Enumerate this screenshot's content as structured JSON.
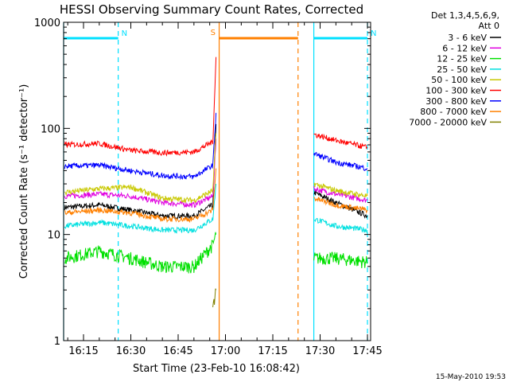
{
  "chart_data": {
    "type": "line",
    "title": "HESSI Observing Summary Count Rates, Corrected",
    "xlabel": "Start Time (23-Feb-10 16:08:42)",
    "ylabel": "Corrected Count Rate (s⁻¹ detector⁻¹)",
    "y_scale": "log",
    "ylim": [
      1,
      1000
    ],
    "xlim": [
      "16:08:42",
      "17:46:00"
    ],
    "ytick_labels": [
      "1",
      "10",
      "100",
      "1000"
    ],
    "xtick_labels": [
      "16:15",
      "16:30",
      "16:45",
      "17:00",
      "17:15",
      "17:30",
      "17:45"
    ],
    "legend_position": "right",
    "legend_header": [
      "Det 1,3,4,5,6,9,",
      "Att 0"
    ],
    "timestamp": "15-May-2010 19:53",
    "annotations": [
      {
        "label": "N",
        "type": "night-marker",
        "color": "#00e0ff",
        "start": "16:08:42",
        "end": "16:26:00"
      },
      {
        "label": "N",
        "type": "night-marker",
        "color": "#00e0ff",
        "start": "17:28:00",
        "end": "17:45:00"
      },
      {
        "label": "S",
        "type": "saa-marker",
        "color": "#ff8000",
        "start": "16:58:00",
        "end": "17:23:00"
      }
    ],
    "series": [
      {
        "name": "3 - 6 keV",
        "color": "#000000",
        "x": [
          "16:09",
          "16:20",
          "16:30",
          "16:40",
          "16:50",
          "16:56",
          "16:57",
          "17:28",
          "17:35",
          "17:45"
        ],
        "values": [
          18,
          19,
          17,
          15,
          15,
          19,
          110,
          25,
          20,
          15
        ]
      },
      {
        "name": "6 - 12 keV",
        "color": "#e000e0",
        "x": [
          "16:09",
          "16:20",
          "16:30",
          "16:40",
          "16:50",
          "16:56",
          "16:57",
          "17:28",
          "17:35",
          "17:45"
        ],
        "values": [
          23,
          24,
          23,
          20,
          19,
          23,
          80,
          27,
          24,
          21
        ]
      },
      {
        "name": "12 - 25 keV",
        "color": "#00e000",
        "x": [
          "16:09",
          "16:20",
          "16:30",
          "16:40",
          "16:50",
          "16:56",
          "16:57",
          "17:28",
          "17:35",
          "17:45"
        ],
        "values": [
          6,
          7,
          6,
          5,
          5,
          8,
          10,
          6,
          6,
          5.5
        ]
      },
      {
        "name": "25 - 50 keV",
        "color": "#00e0e0",
        "x": [
          "16:09",
          "16:20",
          "16:30",
          "16:40",
          "16:50",
          "16:56",
          "16:57",
          "17:28",
          "17:35",
          "17:45"
        ],
        "values": [
          12,
          13,
          12,
          11,
          11,
          14,
          30,
          14,
          12,
          11
        ]
      },
      {
        "name": "50 - 100 keV",
        "color": "#c8c800",
        "x": [
          "16:09",
          "16:20",
          "16:30",
          "16:40",
          "16:50",
          "16:56",
          "16:57",
          "17:28",
          "17:35",
          "17:45"
        ],
        "values": [
          25,
          27,
          28,
          22,
          21,
          26,
          90,
          30,
          26,
          23
        ]
      },
      {
        "name": "100 - 300 keV",
        "color": "#ff0000",
        "x": [
          "16:09",
          "16:20",
          "16:30",
          "16:40",
          "16:50",
          "16:56",
          "16:57",
          "17:28",
          "17:35",
          "17:45"
        ],
        "values": [
          70,
          72,
          62,
          59,
          60,
          75,
          470,
          88,
          77,
          66
        ]
      },
      {
        "name": "300 - 800 keV",
        "color": "#0000ff",
        "x": [
          "16:09",
          "16:20",
          "16:30",
          "16:40",
          "16:50",
          "16:56",
          "16:57",
          "17:28",
          "17:35",
          "17:45"
        ],
        "values": [
          44,
          45,
          40,
          36,
          35,
          45,
          140,
          58,
          48,
          42
        ]
      },
      {
        "name": "800 - 7000 keV",
        "color": "#ff8000",
        "x": [
          "16:09",
          "16:20",
          "16:30",
          "16:40",
          "16:50",
          "16:56",
          "16:57",
          "17:28",
          "17:35",
          "17:45"
        ],
        "values": [
          16,
          17,
          16,
          14,
          14,
          17,
          42,
          22,
          19,
          17
        ]
      },
      {
        "name": "7000 - 20000 keV",
        "color": "#808000",
        "x": [
          "16:56",
          "16:57"
        ],
        "values": [
          2,
          3
        ]
      }
    ]
  }
}
